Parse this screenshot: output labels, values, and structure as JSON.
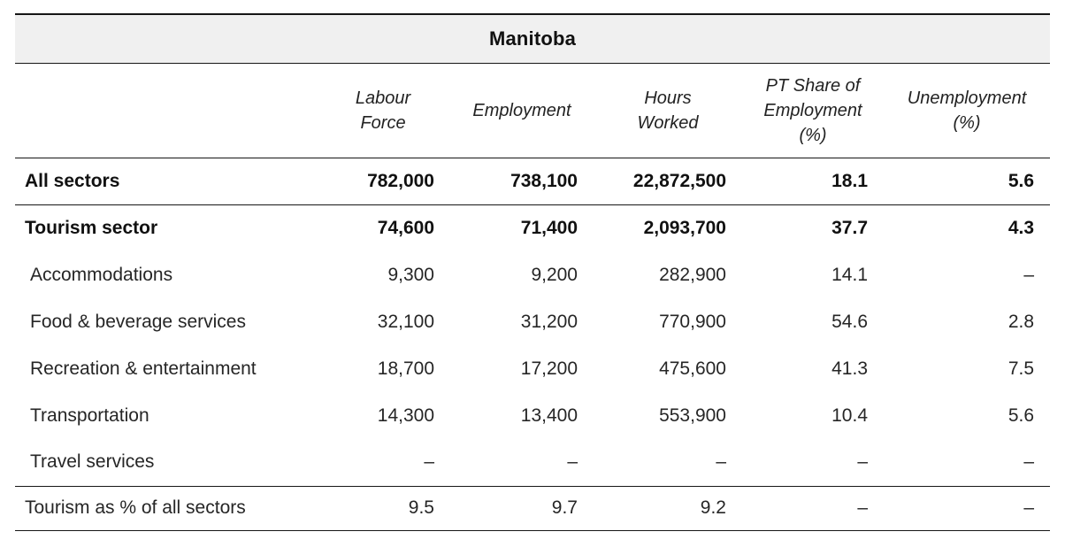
{
  "chart_data": {
    "type": "table",
    "title": "Manitoba",
    "row_header_label": "",
    "columns": [
      "Labour\nForce",
      "Employment",
      "Hours\nWorked",
      "PT Share of\nEmployment\n(%)",
      "Unemployment\n(%)"
    ],
    "rows": [
      {
        "label": "All sectors",
        "values": [
          "782,000",
          "738,100",
          "22,872,500",
          "18.1",
          "5.6"
        ],
        "bold": true,
        "indent": false,
        "rule_above": true,
        "rule_below": true
      },
      {
        "label": "Tourism sector",
        "values": [
          "74,600",
          "71,400",
          "2,093,700",
          "37.7",
          "4.3"
        ],
        "bold": true,
        "indent": false,
        "rule_above": false,
        "rule_below": false
      },
      {
        "label": "Accommodations",
        "values": [
          "9,300",
          "9,200",
          "282,900",
          "14.1",
          "–"
        ],
        "bold": false,
        "indent": true,
        "rule_above": false,
        "rule_below": false
      },
      {
        "label": "Food & beverage services",
        "values": [
          "32,100",
          "31,200",
          "770,900",
          "54.6",
          "2.8"
        ],
        "bold": false,
        "indent": true,
        "rule_above": false,
        "rule_below": false
      },
      {
        "label": "Recreation & entertainment",
        "values": [
          "18,700",
          "17,200",
          "475,600",
          "41.3",
          "7.5"
        ],
        "bold": false,
        "indent": true,
        "rule_above": false,
        "rule_below": false
      },
      {
        "label": "Transportation",
        "values": [
          "14,300",
          "13,400",
          "553,900",
          "10.4",
          "5.6"
        ],
        "bold": false,
        "indent": true,
        "rule_above": false,
        "rule_below": false
      },
      {
        "label": "Travel services",
        "values": [
          "–",
          "–",
          "–",
          "–",
          "–"
        ],
        "bold": false,
        "indent": true,
        "rule_above": false,
        "rule_below": false
      },
      {
        "label": "Tourism as % of all sectors",
        "values": [
          "9.5",
          "9.7",
          "9.2",
          "–",
          "–"
        ],
        "bold": false,
        "indent": false,
        "rule_above": true,
        "rule_below": true
      }
    ],
    "layout": {
      "grid": "horizontal rules only, no vertical rules",
      "title_band_bg": "#f0f0f0",
      "rule_color": "#161616",
      "value_alignment": "right",
      "header_alignment": "center"
    }
  }
}
